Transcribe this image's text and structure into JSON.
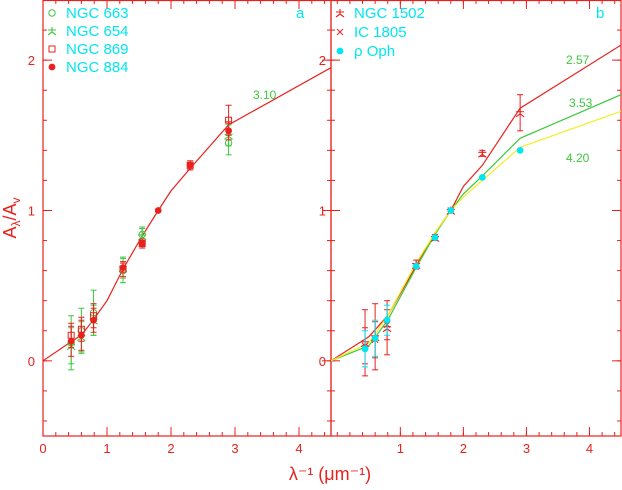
{
  "colors": {
    "frame": "#e8211d",
    "legend_text": "#00e6f0",
    "series_red": "#e8211d",
    "series_green": "#3cc83c",
    "series_yellow": "#f0f020",
    "series_cyan": "#00e6f0",
    "curve_label": "#3cc83c"
  },
  "axes": {
    "xlabel": "λ⁻¹ (μm⁻¹)",
    "ylabel_main": "A",
    "ylabel_main_sub": "λ",
    "ylabel_den": "A",
    "ylabel_den_sub": "v"
  },
  "chart_data": [
    {
      "panel_label": "a",
      "type": "line",
      "xlim": [
        0,
        4.5
      ],
      "ylim": [
        -0.5,
        2.4
      ],
      "xticks": [
        0,
        1,
        2,
        3,
        4
      ],
      "yticks": [
        0,
        1,
        2
      ],
      "legend": [
        {
          "name": "NGC 663",
          "marker": "circle-open",
          "color": "#3cc83c"
        },
        {
          "name": "NGC 654",
          "marker": "star",
          "color": "#3cc83c"
        },
        {
          "name": "NGC 869",
          "marker": "square-open",
          "color": "#e8211d"
        },
        {
          "name": "NGC 884",
          "marker": "circle-filled",
          "color": "#e8211d"
        }
      ],
      "curves": [
        {
          "label": "3.10",
          "color": "#e8211d",
          "x": [
            0,
            0.45,
            0.6,
            0.8,
            1.0,
            1.25,
            1.55,
            1.8,
            2.0,
            2.3,
            2.9,
            4.5
          ],
          "y": [
            0,
            0.13,
            0.17,
            0.28,
            0.4,
            0.61,
            0.83,
            1.0,
            1.13,
            1.28,
            1.57,
            1.95
          ]
        }
      ],
      "series": [
        {
          "name": "NGC 663",
          "color": "#3cc83c",
          "marker": "circle-open",
          "x": [
            0.44,
            0.6,
            0.79,
            1.25,
            1.55,
            2.9
          ],
          "y": [
            0.12,
            0.2,
            0.32,
            0.6,
            0.84,
            1.45
          ],
          "err": [
            0.18,
            0.15,
            0.15,
            0.08,
            0.05,
            0.08
          ]
        },
        {
          "name": "NGC 654",
          "color": "#3cc83c",
          "marker": "star",
          "x": [
            0.44,
            0.6,
            0.79,
            1.25,
            1.55,
            2.9
          ],
          "y": [
            0.1,
            0.16,
            0.27,
            0.62,
            0.83,
            1.5
          ],
          "err": [
            0.12,
            0.1,
            0.1,
            0.07,
            0.05,
            0.07
          ]
        },
        {
          "name": "NGC 869",
          "color": "#e8211d",
          "marker": "square-open",
          "x": [
            0.44,
            0.6,
            0.79,
            1.25,
            1.55,
            2.3,
            2.9
          ],
          "y": [
            0.17,
            0.21,
            0.3,
            0.61,
            0.78,
            1.3,
            1.6
          ],
          "err": [
            0.08,
            0.08,
            0.08,
            0.05,
            0.03,
            0.03,
            0.1
          ]
        },
        {
          "name": "NGC 884",
          "color": "#e8211d",
          "marker": "circle-filled",
          "x": [
            0.44,
            0.6,
            0.79,
            1.25,
            1.55,
            1.8,
            2.3,
            2.9
          ],
          "y": [
            0.13,
            0.17,
            0.27,
            0.62,
            0.78,
            1.0,
            1.3,
            1.53
          ],
          "err": [
            0.1,
            0.1,
            0.08,
            0.03,
            0.02,
            0.0,
            0.03,
            0.06
          ]
        }
      ]
    },
    {
      "panel_label": "b",
      "type": "line",
      "xlim": [
        -0.1,
        4.5
      ],
      "ylim": [
        -0.5,
        2.4
      ],
      "xticks": [
        1,
        2,
        3,
        4
      ],
      "yticks": [
        0,
        1,
        2
      ],
      "legend": [
        {
          "name": "NGC 1502",
          "marker": "star",
          "color": "#e8211d"
        },
        {
          "name": "IC 1805",
          "marker": "cross",
          "color": "#e8211d"
        },
        {
          "name": "ρ Oph",
          "marker": "circle-filled",
          "color": "#00e6f0"
        }
      ],
      "curves": [
        {
          "label": "2.57",
          "color": "#e8211d",
          "x": [
            -0.1,
            0.5,
            0.8,
            1.25,
            1.55,
            1.8,
            2.0,
            2.3,
            2.9,
            4.5
          ],
          "y": [
            0.0,
            0.16,
            0.3,
            0.63,
            0.85,
            1.0,
            1.16,
            1.3,
            1.68,
            2.1
          ]
        },
        {
          "label": "3.53",
          "color": "#3cc83c",
          "x": [
            -0.1,
            0.5,
            0.8,
            1.25,
            1.55,
            1.8,
            2.0,
            2.3,
            2.9,
            4.5
          ],
          "y": [
            0.0,
            0.1,
            0.27,
            0.62,
            0.84,
            1.0,
            1.11,
            1.23,
            1.48,
            1.77
          ]
        },
        {
          "label": "4.20",
          "color": "#f0f020",
          "x": [
            -0.1,
            0.5,
            0.8,
            1.25,
            1.55,
            1.8,
            2.0,
            2.3,
            2.9,
            4.5
          ],
          "y": [
            0.0,
            0.12,
            0.3,
            0.65,
            0.85,
            1.0,
            1.09,
            1.2,
            1.42,
            1.66
          ]
        }
      ],
      "series": [
        {
          "name": "NGC 1502",
          "color": "#e8211d",
          "marker": "star",
          "x": [
            0.44,
            0.6,
            0.79,
            1.25,
            1.55,
            1.8,
            2.3,
            2.9
          ],
          "y": [
            0.12,
            0.16,
            0.22,
            0.64,
            0.82,
            1.0,
            1.38,
            1.65
          ],
          "err": [
            0.22,
            0.22,
            0.18,
            0.03,
            0.02,
            0.0,
            0.02,
            0.12
          ]
        },
        {
          "name": "IC 1805",
          "color": "#e8211d",
          "marker": "cross",
          "x": [
            0.44,
            0.6,
            0.79,
            1.8
          ],
          "y": [
            0.1,
            0.14,
            0.24,
            1.0
          ],
          "err": [
            0.12,
            0.12,
            0.1,
            0.0
          ]
        },
        {
          "name": "ρ Oph",
          "color": "#00e6f0",
          "marker": "circle-filled",
          "x": [
            0.44,
            0.6,
            0.79,
            1.25,
            1.55,
            1.8,
            2.3,
            2.9
          ],
          "y": [
            0.08,
            0.15,
            0.27,
            0.63,
            0.82,
            1.0,
            1.22,
            1.4
          ],
          "err": [
            0.12,
            0.12,
            0.1,
            0.0,
            0.0,
            0.0,
            0.0,
            0.0
          ]
        }
      ]
    }
  ]
}
